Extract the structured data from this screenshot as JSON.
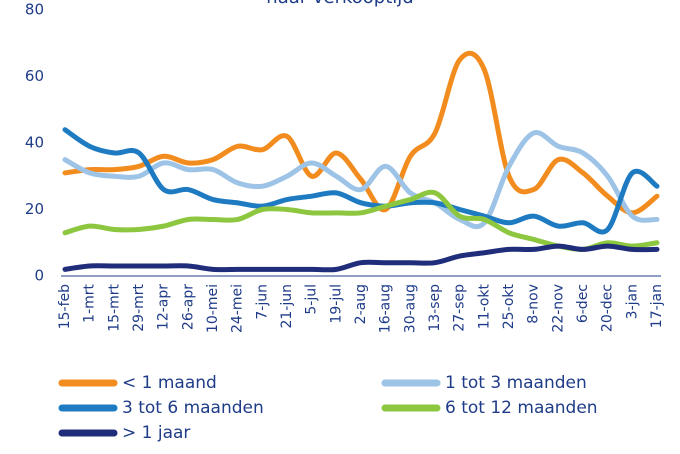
{
  "chart_data": {
    "type": "line",
    "title": "naar verkooptijd",
    "categories": [
      "15-feb",
      "1-mrt",
      "15-mrt",
      "29-mrt",
      "12-apr",
      "26-apr",
      "10-mei",
      "24-mei",
      "7-jun",
      "21-jun",
      "5-jul",
      "19-jul",
      "2-aug",
      "16-aug",
      "30-aug",
      "13-sep",
      "27-sep",
      "11-okt",
      "25-okt",
      "8-nov",
      "22-nov",
      "6-dec",
      "20-dec",
      "3-jan",
      "17-jan"
    ],
    "series": [
      {
        "name": "< 1 maand",
        "color": "#f28c1e",
        "values": [
          31,
          32,
          32,
          33,
          36,
          34,
          35,
          39,
          38,
          42,
          30,
          37,
          29,
          20,
          36,
          43,
          65,
          62,
          30,
          26,
          35,
          31,
          24,
          19,
          24
        ]
      },
      {
        "name": "1 tot 3 maanden",
        "color": "#9dc3e6",
        "values": [
          35,
          31,
          30,
          30,
          34,
          32,
          32,
          28,
          27,
          30,
          34,
          30,
          26,
          33,
          25,
          22,
          17,
          16,
          33,
          43,
          39,
          37,
          30,
          18,
          17
        ]
      },
      {
        "name": "3 tot 6 maanden",
        "color": "#1f7bc1",
        "values": [
          44,
          39,
          37,
          37,
          26,
          26,
          23,
          22,
          21,
          23,
          24,
          25,
          22,
          21,
          22,
          22,
          20,
          18,
          16,
          18,
          15,
          16,
          14,
          31,
          27
        ]
      },
      {
        "name": "6 tot 12 maanden",
        "color": "#8dc63f",
        "values": [
          13,
          15,
          14,
          14,
          15,
          17,
          17,
          17,
          20,
          20,
          19,
          19,
          19,
          21,
          23,
          25,
          18,
          17,
          13,
          11,
          9,
          8,
          10,
          9,
          10
        ]
      },
      {
        "name": "> 1 jaar",
        "color": "#1f2d7a",
        "values": [
          2,
          3,
          3,
          3,
          3,
          3,
          2,
          2,
          2,
          2,
          2,
          2,
          4,
          4,
          4,
          4,
          6,
          7,
          8,
          8,
          9,
          8,
          9,
          8,
          8
        ]
      }
    ],
    "ylim": [
      0,
      80
    ],
    "yticks": [
      0,
      20,
      40,
      60,
      80
    ]
  }
}
